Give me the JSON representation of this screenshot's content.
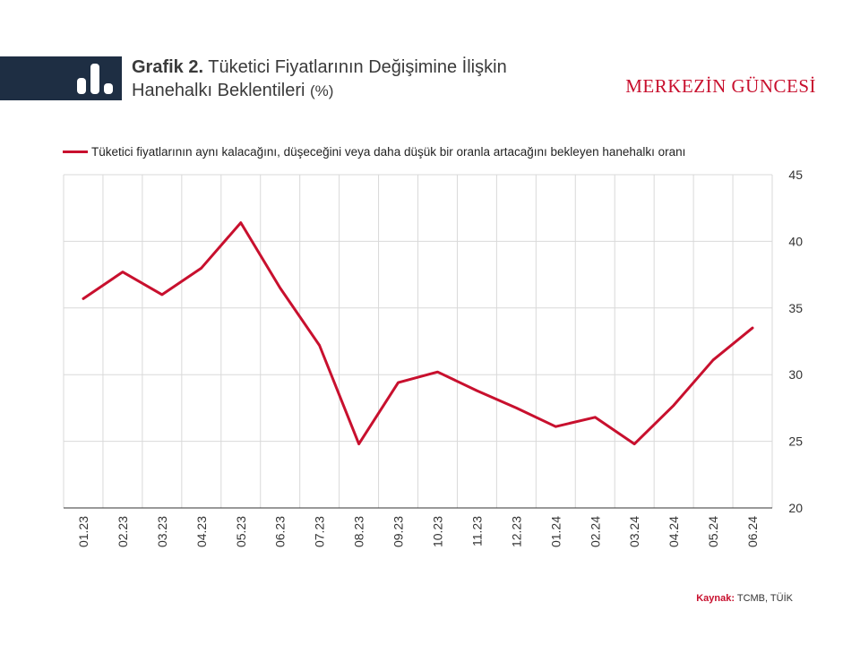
{
  "header": {
    "title_strong": "Grafik 2.",
    "title_rest": "Tüketici Fiyatlarının Değişimine İlişkin",
    "title_line2": "Hanehalkı Beklentileri",
    "title_unit": "(%)",
    "brand": "MERKEZİN GÜNCESİ",
    "icon": "bar-chart-icon"
  },
  "source": {
    "key": "Kaynak:",
    "value": "TCMB, TÜİK"
  },
  "colors": {
    "series": "#c8102e",
    "header_bar": "#1e2e43",
    "grid": "#d9d9d9"
  },
  "chart_data": {
    "type": "line",
    "categories": [
      "01.23",
      "02.23",
      "03.23",
      "04.23",
      "05.23",
      "06.23",
      "07.23",
      "08.23",
      "09.23",
      "10.23",
      "11.23",
      "12.23",
      "01.24",
      "02.24",
      "03.24",
      "04.24",
      "05.24",
      "06.24"
    ],
    "series": [
      {
        "name": "Tüketici fiyatlarının aynı kalacağını, düşeceğini veya daha düşük bir oranla artacağını bekleyen hanehalkı oranı",
        "values": [
          35.7,
          37.7,
          36.0,
          38.0,
          41.4,
          36.5,
          32.2,
          24.8,
          29.4,
          30.2,
          28.8,
          27.5,
          26.1,
          26.8,
          24.8,
          27.7,
          31.1,
          33.5
        ]
      }
    ],
    "ylim": [
      20,
      45
    ],
    "yticks": [
      20,
      25,
      30,
      35,
      40,
      45
    ],
    "yaxis_side": "right",
    "grid": true,
    "legend_position": "top"
  }
}
